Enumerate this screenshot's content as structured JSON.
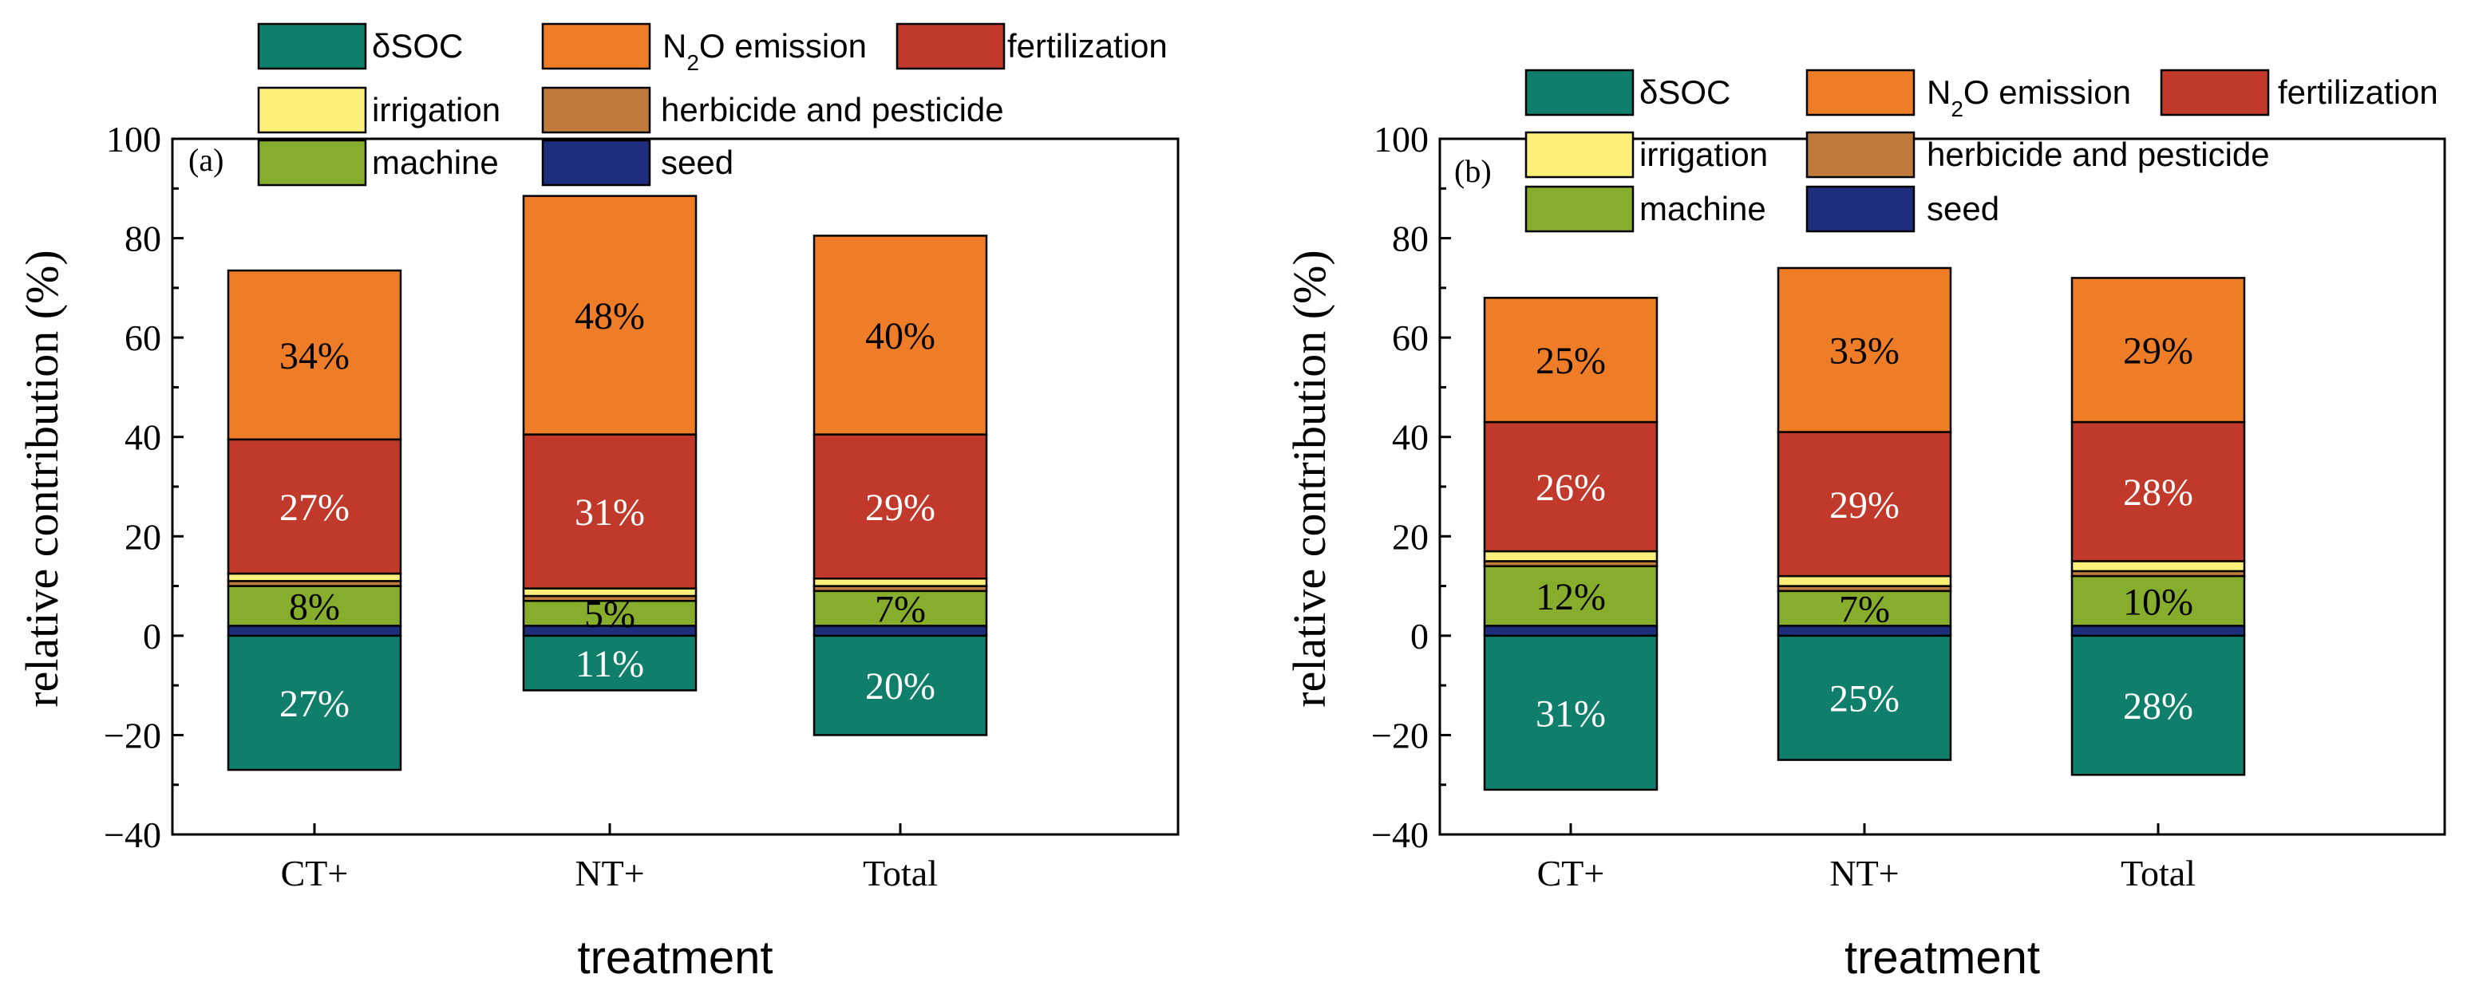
{
  "colors": {
    "dSOC": "#0f7f6c",
    "N2O": "#ef7d27",
    "fertilization": "#c0392b",
    "irrigation": "#fdf07a",
    "herbicide": "#bf7a3c",
    "machine": "#86ad2b",
    "seed": "#1f2e7c"
  },
  "chart_data": [
    {
      "type": "bar",
      "stacked": true,
      "panel_label": "(a)",
      "xlabel": "treatment",
      "ylabel": "relative contribution (%)",
      "ylim": [
        -40,
        100
      ],
      "yticks": [
        100,
        80,
        60,
        40,
        20,
        0,
        -20,
        -40
      ],
      "ytick_labels": [
        "100",
        "80",
        "60",
        "40",
        "20",
        "0",
        "−20",
        "−40"
      ],
      "categories": [
        "CT+",
        "NT+",
        "Total"
      ],
      "series": [
        {
          "key": "dSOC",
          "name": "δSOC",
          "values": [
            -27,
            -11,
            -20
          ],
          "labels": [
            "27%",
            "11%",
            "20%"
          ]
        },
        {
          "key": "seed",
          "name": "seed",
          "values": [
            2,
            2,
            2
          ],
          "labels": [
            "",
            "",
            ""
          ]
        },
        {
          "key": "machine",
          "name": "machine",
          "values": [
            8,
            5,
            7
          ],
          "labels": [
            "8%",
            "5%",
            "7%"
          ]
        },
        {
          "key": "herbicide",
          "name": "herbicide and pesticide",
          "values": [
            1,
            1,
            1
          ],
          "labels": [
            "",
            "",
            ""
          ]
        },
        {
          "key": "irrigation",
          "name": "irrigation",
          "values": [
            1.5,
            1.5,
            1.5
          ],
          "labels": [
            "",
            "",
            ""
          ]
        },
        {
          "key": "fertilization",
          "name": "fertilization",
          "values": [
            27,
            31,
            29
          ],
          "labels": [
            "27%",
            "31%",
            "29%"
          ]
        },
        {
          "key": "N2O",
          "name": "N2O emission",
          "values": [
            34,
            48,
            40
          ],
          "labels": [
            "34%",
            "48%",
            "40%"
          ]
        }
      ],
      "legend": {
        "position": "top",
        "rows": [
          [
            {
              "key": "dSOC",
              "text": "δSOC"
            },
            {
              "key": "N2O",
              "text": "N",
              "sub": "2",
              "tail": "O emission"
            },
            {
              "key": "fertilization",
              "text": "fertilization"
            }
          ],
          [
            {
              "key": "irrigation",
              "text": "irrigation"
            },
            {
              "key": "herbicide",
              "text": "herbicide and pesticide"
            }
          ],
          [
            {
              "key": "machine",
              "text": "machine"
            },
            {
              "key": "seed",
              "text": "seed"
            }
          ]
        ]
      }
    },
    {
      "type": "bar",
      "stacked": true,
      "panel_label": "(b)",
      "xlabel": "treatment",
      "ylabel": "relative contribution (%)",
      "ylim": [
        -40,
        100
      ],
      "yticks": [
        100,
        80,
        60,
        40,
        20,
        0,
        -20,
        -40
      ],
      "ytick_labels": [
        "100",
        "80",
        "60",
        "40",
        "20",
        "0",
        "−20",
        "−40"
      ],
      "categories": [
        "CT+",
        "NT+",
        "Total"
      ],
      "series": [
        {
          "key": "dSOC",
          "name": "δSOC",
          "values": [
            -31,
            -25,
            -28
          ],
          "labels": [
            "31%",
            "25%",
            "28%"
          ]
        },
        {
          "key": "seed",
          "name": "seed",
          "values": [
            2,
            2,
            2
          ],
          "labels": [
            "",
            "",
            ""
          ]
        },
        {
          "key": "machine",
          "name": "machine",
          "values": [
            12,
            7,
            10
          ],
          "labels": [
            "12%",
            "7%",
            "10%"
          ]
        },
        {
          "key": "herbicide",
          "name": "herbicide and pesticide",
          "values": [
            1,
            1,
            1
          ],
          "labels": [
            "",
            "",
            ""
          ]
        },
        {
          "key": "irrigation",
          "name": "irrigation",
          "values": [
            2,
            2,
            2
          ],
          "labels": [
            "",
            "",
            ""
          ]
        },
        {
          "key": "fertilization",
          "name": "fertilization",
          "values": [
            26,
            29,
            28
          ],
          "labels": [
            "26%",
            "29%",
            "28%"
          ]
        },
        {
          "key": "N2O",
          "name": "N2O emission",
          "values": [
            25,
            33,
            29
          ],
          "labels": [
            "25%",
            "33%",
            "29%"
          ]
        }
      ],
      "legend": {
        "position": "top",
        "rows": [
          [
            {
              "key": "dSOC",
              "text": "δSOC"
            },
            {
              "key": "N2O",
              "text": "N",
              "sub": "2",
              "tail": "O emission"
            },
            {
              "key": "fertilization",
              "text": "fertilization"
            }
          ],
          [
            {
              "key": "irrigation",
              "text": "irrigation"
            },
            {
              "key": "herbicide",
              "text": "herbicide and pesticide"
            }
          ],
          [
            {
              "key": "machine",
              "text": "machine"
            },
            {
              "key": "seed",
              "text": "seed"
            }
          ]
        ]
      }
    }
  ]
}
